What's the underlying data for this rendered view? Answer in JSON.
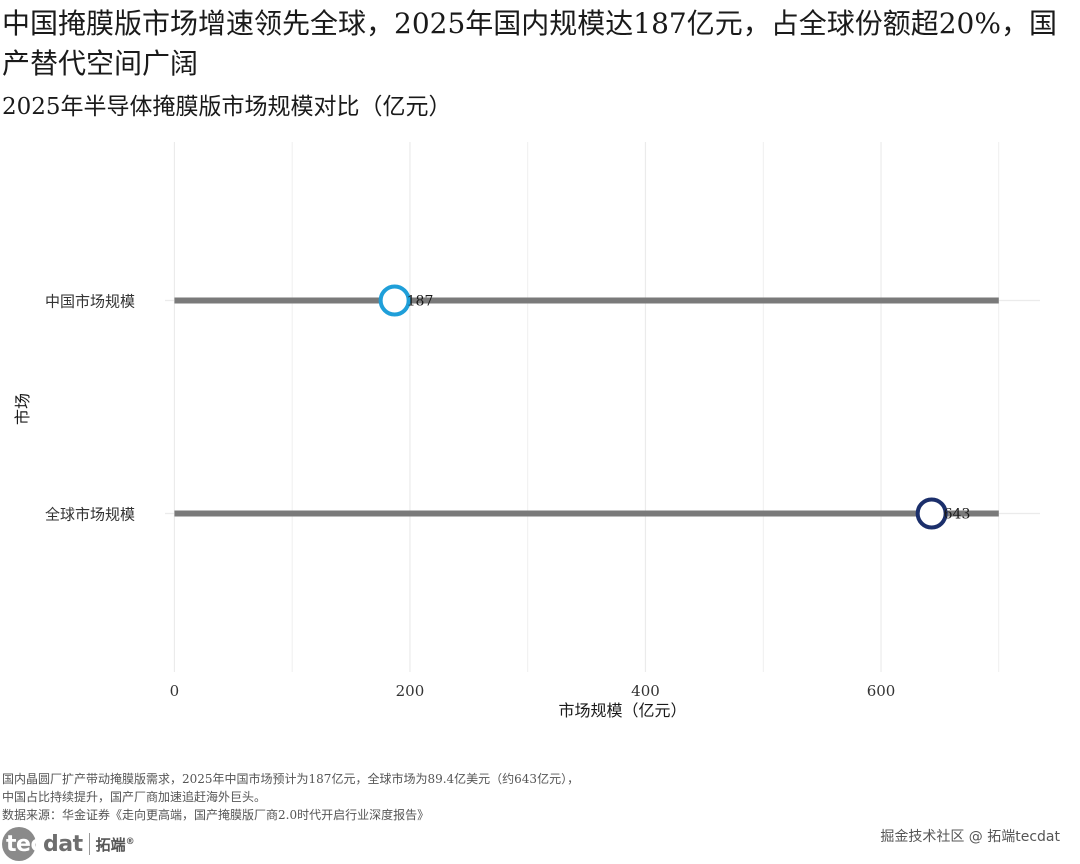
{
  "title": "中国掩膜版市场增速领先全球，2025年国内规模达187亿元，占全球份额超20%，国产替代空间广阔",
  "caption": {
    "lines": [
      "国内晶圆厂扩产带动掩膜版需求，2025年中国市场预计为187亿元，全球市场为89.4亿美元（约643亿元），",
      "中国占比持续提升，国产厂商加速追赶海外巨头。",
      "数据来源：华金证券《走向更高端，国产掩膜版厂商2.0时代开启行业深度报告》"
    ]
  },
  "logo": {
    "text_tec": "tec",
    "text_dat": "dat",
    "text_cn": "拓端",
    "mark": "®"
  },
  "watermark": "掘金技术社区 @ 拓端tecdat",
  "chart_data": {
    "type": "dot",
    "title": "2025年半导体掩膜版市场规模对比（亿元）",
    "xlabel": "市场规模（亿元）",
    "ylabel": "市场",
    "categories": [
      "中国市场规模",
      "全球市场规模"
    ],
    "values": [
      187,
      643
    ],
    "data_labels": [
      "187",
      "643"
    ],
    "segment_end": 700,
    "xlim": [
      -8,
      735
    ],
    "xticks": [
      0,
      200,
      400,
      600
    ],
    "xtick_labels": [
      "0",
      "200",
      "400",
      "600"
    ],
    "grid": true,
    "colors": {
      "中国市场规模": "#1f9fd9",
      "全球市场规模": "#1b2f6b",
      "segment": "#7a7a7a",
      "grid": "#ebebeb"
    }
  }
}
